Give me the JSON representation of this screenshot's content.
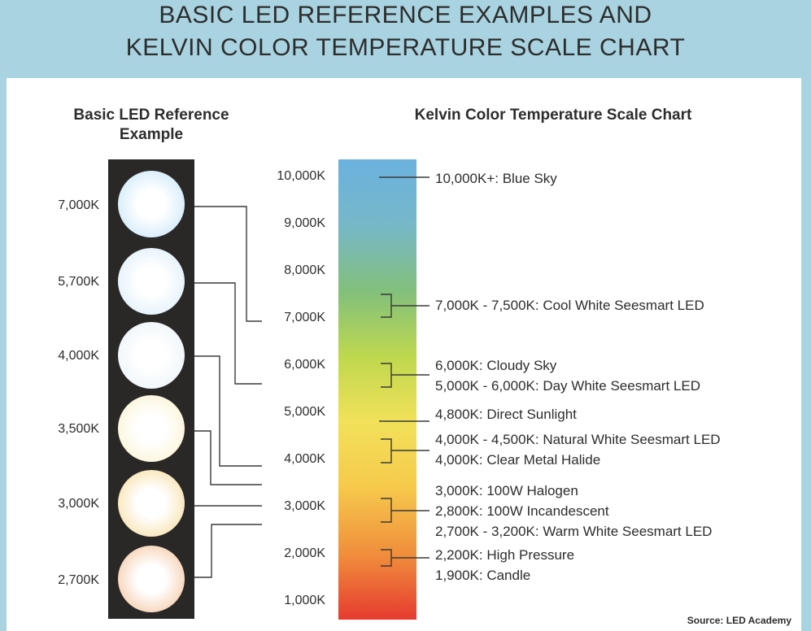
{
  "title": {
    "line1": "BASIC LED REFERENCE EXAMPLES AND",
    "line2": "KELVIN COLOR TEMPERATURE SCALE CHART"
  },
  "led_section": {
    "heading_line1": "Basic LED Reference",
    "heading_line2": "Example",
    "leds": [
      {
        "label": "7,000K",
        "color": "#bfe2f7"
      },
      {
        "label": "5,700K",
        "color": "#d6ebf8"
      },
      {
        "label": "4,000K",
        "color": "#e6f1f8"
      },
      {
        "label": "3,500K",
        "color": "#fbf0c8"
      },
      {
        "label": "3,000K",
        "color": "#f6d992"
      },
      {
        "label": "2,700K",
        "color": "#f1bd91"
      }
    ]
  },
  "scale_section": {
    "heading": "Kelvin Color Temperature Scale Chart",
    "ticks": [
      "10,000K",
      "9,000K",
      "8,000K",
      "7,000K",
      "6,000K",
      "5,000K",
      "4,000K",
      "3,000K",
      "2,000K",
      "1,000K"
    ],
    "annotations": [
      {
        "lines": [
          "10,000K+: Blue Sky"
        ]
      },
      {
        "lines": [
          "7,000K - 7,500K: Cool White Seesmart LED"
        ]
      },
      {
        "lines": [
          "6,000K: Cloudy Sky",
          "5,000K - 6,000K: Day White Seesmart LED"
        ]
      },
      {
        "lines": [
          "4,800K: Direct Sunlight"
        ]
      },
      {
        "lines": [
          "4,000K - 4,500K: Natural White Seesmart LED",
          "4,000K: Clear Metal Halide"
        ]
      },
      {
        "lines": [
          "3,000K: 100W Halogen",
          "2,800K: 100W Incandescent",
          "2,700K - 3,200K: Warm White Seesmart LED"
        ]
      },
      {
        "lines": [
          "2,200K: High Pressure",
          "1,900K: Candle"
        ]
      }
    ],
    "gradient_colors": [
      "#6bb2df",
      "#76b7c9",
      "#83c07a",
      "#bfd84e",
      "#f2e15a",
      "#f6ca4c",
      "#f08d3c",
      "#e63b2f"
    ]
  },
  "source": "Source: LED Academy"
}
